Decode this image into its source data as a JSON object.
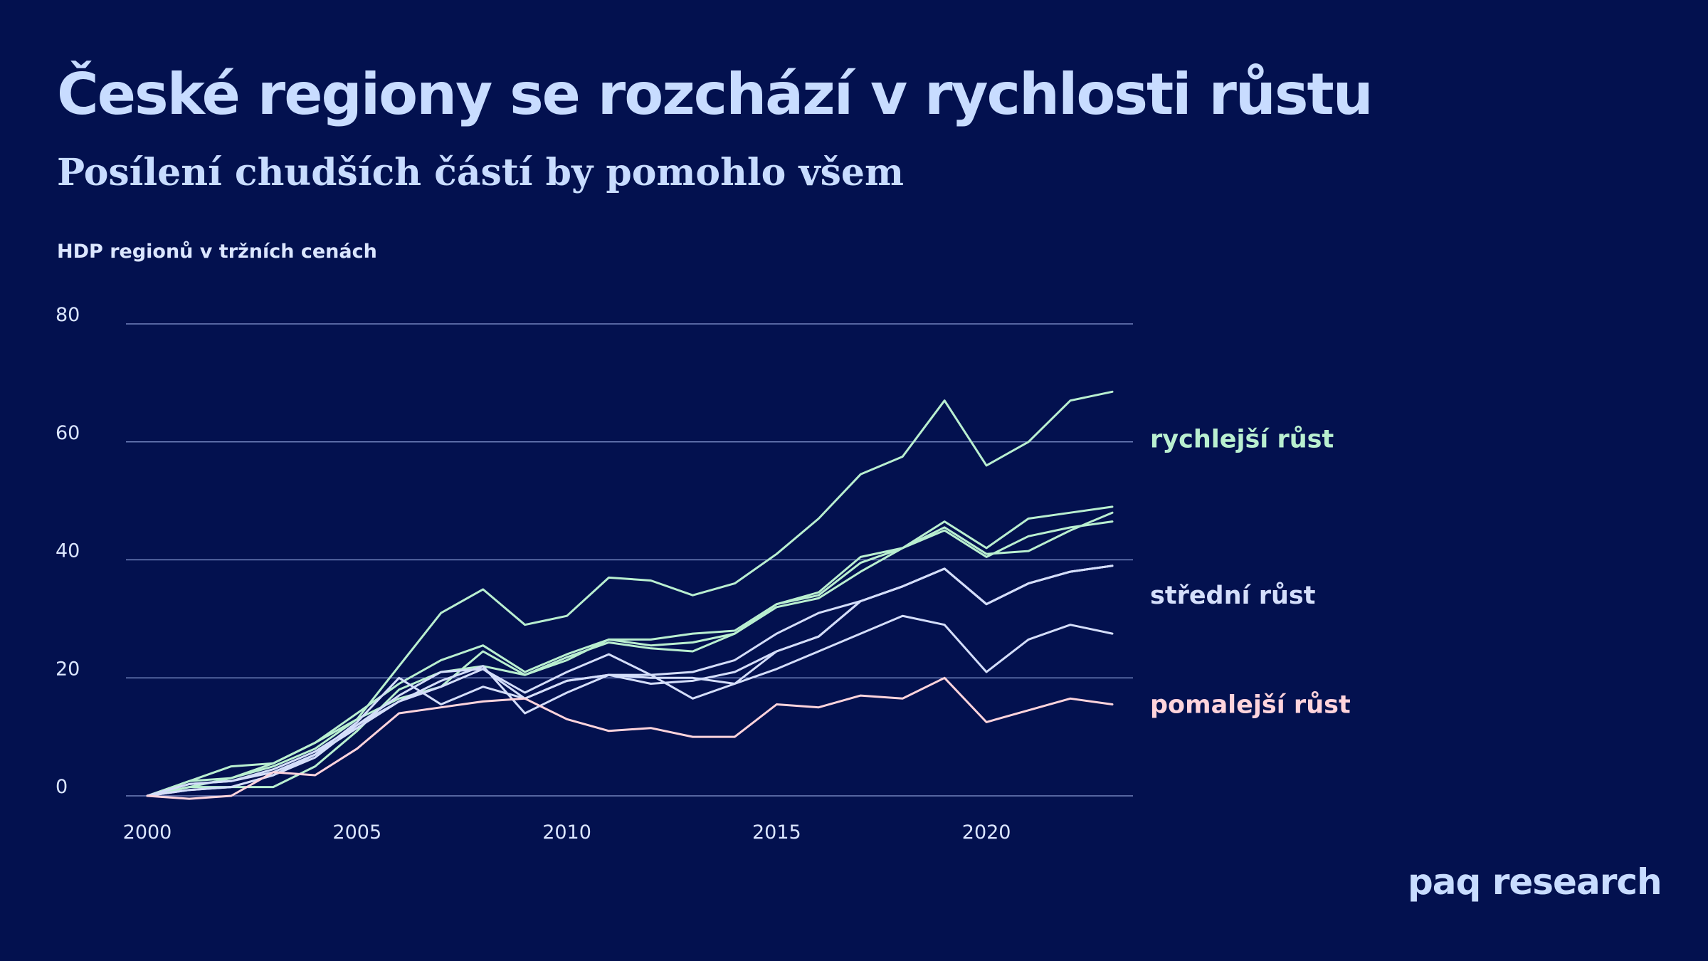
{
  "header": {
    "title": "České regiony se rozchází v rychlosti růstu",
    "subtitle": "Posílení chudších částí by pomohlo všem"
  },
  "brand": {
    "logo_text": "paq research"
  },
  "colors": {
    "background": "#03114f",
    "text": "#c8dcff",
    "grid": "#9fb2ea",
    "fast": "#b9efd0",
    "medium": "#d4defa",
    "slow": "#ffd4dc"
  },
  "chart_data": {
    "type": "line",
    "ylabel": "HDP regionů v tržních cenách",
    "xlim": [
      2000,
      2023
    ],
    "ylim": [
      0,
      80
    ],
    "x_ticks": [
      2000,
      2005,
      2010,
      2015,
      2020
    ],
    "y_ticks": [
      0,
      20,
      40,
      60,
      80
    ],
    "grid": true,
    "x": [
      2000,
      2001,
      2002,
      2003,
      2004,
      2005,
      2006,
      2007,
      2008,
      2009,
      2010,
      2011,
      2012,
      2013,
      2014,
      2015,
      2016,
      2017,
      2018,
      2019,
      2020,
      2021,
      2022,
      2023
    ],
    "group_labels": [
      {
        "text": "rychlejší růst",
        "group": "fast",
        "y": 60.5
      },
      {
        "text": "střední růst",
        "group": "medium",
        "y": 34
      },
      {
        "text": "pomalejší růst",
        "group": "slow",
        "y": 15.5
      }
    ],
    "series": [
      {
        "group": "fast",
        "values": [
          0,
          1.5,
          3,
          5,
          8,
          13,
          22,
          31,
          35,
          29,
          30.5,
          37,
          36.5,
          34,
          36,
          41,
          47,
          54.5,
          57.5,
          67,
          56,
          60,
          67,
          68.5
        ]
      },
      {
        "group": "fast",
        "values": [
          0,
          2.5,
          5,
          5.5,
          9,
          14,
          19,
          23,
          25.5,
          21,
          24,
          26.5,
          26.5,
          27.5,
          28,
          32.5,
          34.5,
          40.5,
          42,
          46.5,
          42,
          47,
          48,
          49
        ]
      },
      {
        "group": "fast",
        "values": [
          0,
          2.5,
          3,
          5.5,
          9,
          13,
          16.5,
          18.5,
          24.5,
          20.5,
          23.5,
          26,
          25,
          24.5,
          27.5,
          32,
          33.5,
          38,
          42,
          45,
          40.5,
          44,
          45.5,
          46.5
        ]
      },
      {
        "group": "fast",
        "values": [
          0,
          1.5,
          1.5,
          1.5,
          5,
          11,
          18,
          21,
          22,
          20.5,
          23,
          26.5,
          25.5,
          26,
          27.5,
          32.5,
          34,
          39.5,
          42,
          45.5,
          41,
          41.5,
          45,
          48
        ]
      },
      {
        "group": "medium",
        "values": [
          0,
          2,
          2.5,
          4.5,
          7.5,
          12,
          17,
          21,
          21.5,
          17.5,
          21,
          24,
          20.5,
          21,
          23,
          27.5,
          31,
          33,
          35.5,
          38.5,
          32.5,
          36,
          38,
          39
        ]
      },
      {
        "group": "medium",
        "values": [
          0,
          1,
          1.5,
          3.5,
          7,
          11.5,
          16,
          19.5,
          22,
          14,
          17.5,
          20.5,
          20.5,
          16.5,
          19,
          24.5,
          27,
          33,
          35.5,
          38.5,
          32.5,
          36,
          38,
          39
        ]
      },
      {
        "group": "medium",
        "values": [
          0,
          2,
          2.5,
          4,
          7,
          12.5,
          20,
          15.5,
          18.5,
          16.5,
          19.5,
          20.5,
          19,
          19.5,
          21,
          24.5,
          27,
          33,
          35.5,
          38.5,
          32.5,
          36,
          38,
          39
        ]
      },
      {
        "group": "medium",
        "values": [
          0,
          1,
          1.5,
          3.5,
          6.5,
          12,
          16,
          18.5,
          21.5,
          16.5,
          19.5,
          20.5,
          20,
          20,
          19,
          21.5,
          24.5,
          27.5,
          30.5,
          29,
          21,
          26.5,
          29,
          27.5
        ]
      },
      {
        "group": "slow",
        "values": [
          0,
          -0.5,
          0,
          4,
          3.5,
          8,
          14,
          15,
          16,
          16.5,
          13,
          11,
          11.5,
          10,
          10,
          15.5,
          15,
          17,
          16.5,
          20,
          12.5,
          14.5,
          16.5,
          15.5
        ]
      }
    ]
  }
}
